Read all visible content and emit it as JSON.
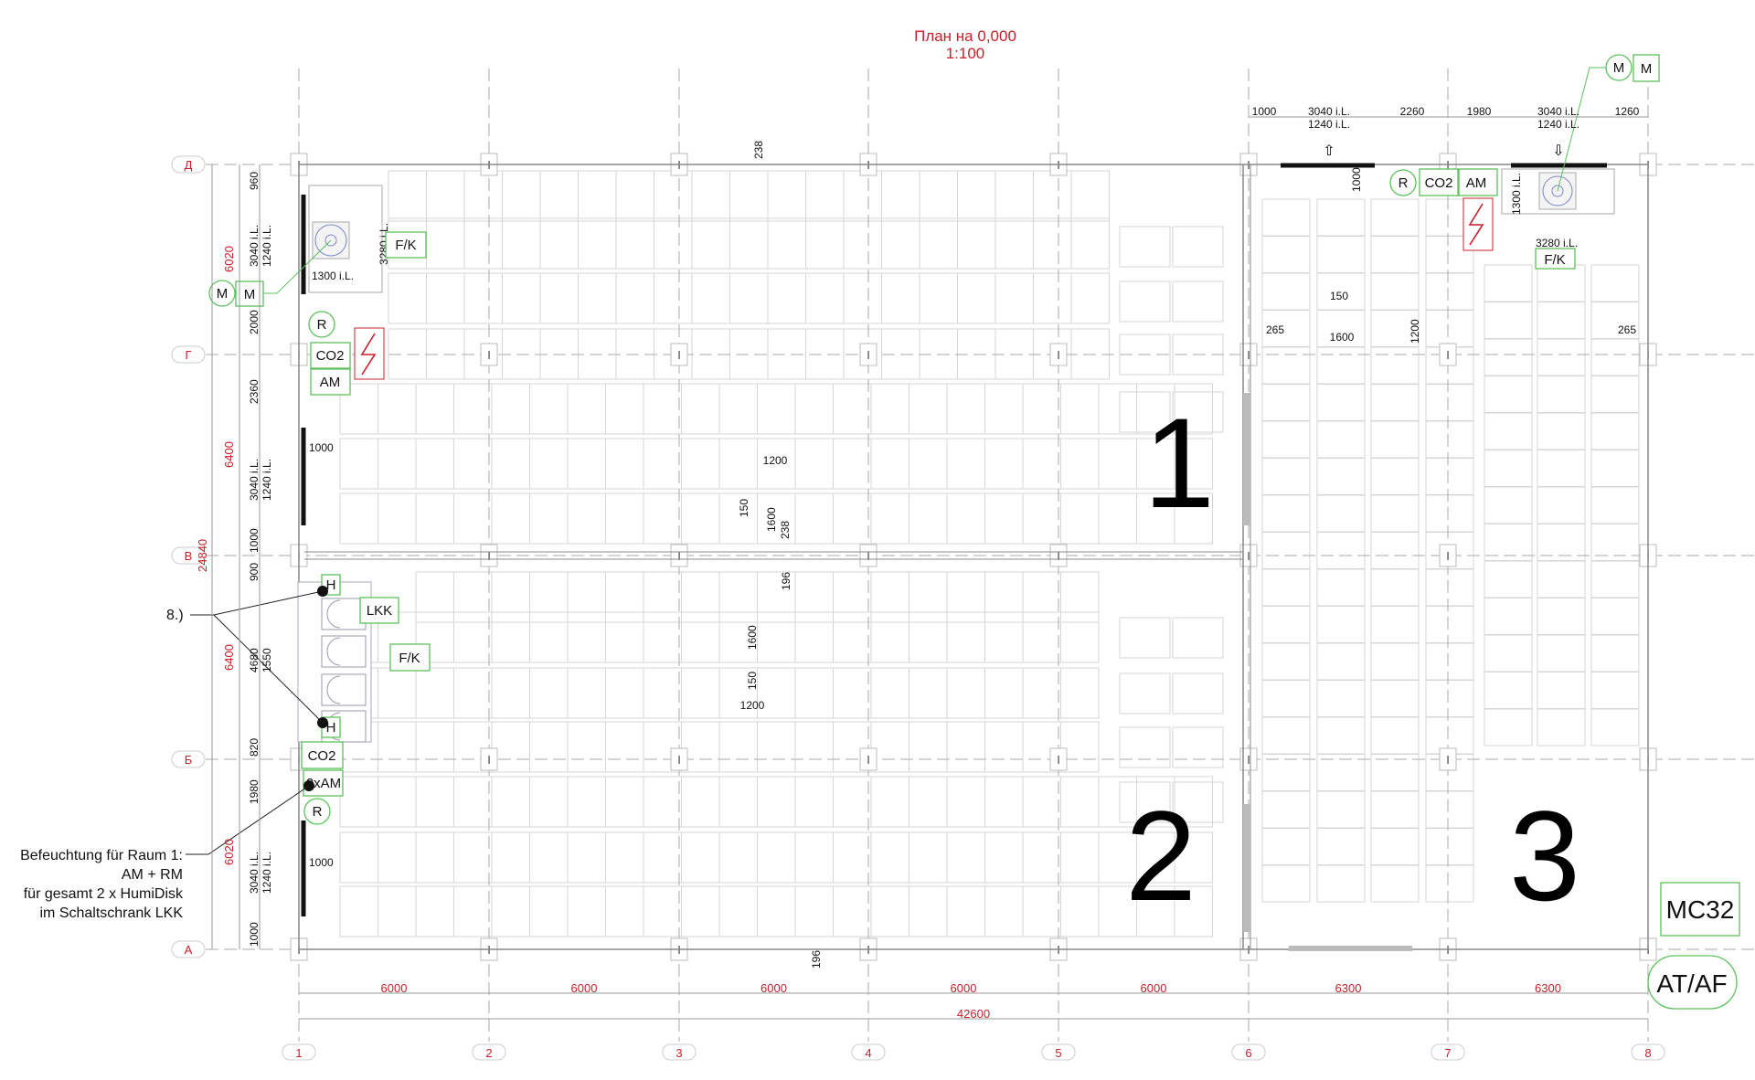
{
  "title": {
    "line1": "План на 0,000",
    "line2": "1:100"
  },
  "axes": {
    "columns": [
      "1",
      "2",
      "3",
      "4",
      "5",
      "6",
      "7",
      "8"
    ],
    "rows": [
      "Д",
      "Г",
      "В",
      "Б",
      "А"
    ]
  },
  "bottom_dims": {
    "spans": [
      "6000",
      "6000",
      "6000",
      "6000",
      "6000",
      "6300",
      "6300"
    ],
    "total": "42600"
  },
  "left_dims": {
    "red": [
      "6020",
      "6400",
      "24840",
      "6400",
      "6020"
    ],
    "black": [
      "960",
      "2000",
      "2360",
      "1000",
      "900",
      "820",
      "1980",
      "1000"
    ],
    "opening_a": "3040 i.L.",
    "opening_b": "1240 i.L.",
    "lkk_a": "4680",
    "lkk_b": "1550"
  },
  "top_right_dims": {
    "d1": "1000",
    "d2a": "3040 i.L.",
    "d2b": "1240 i.L.",
    "d3": "2260",
    "d4": "1980",
    "d5a": "3040 i.L.",
    "d5b": "1240 i.L.",
    "d6": "1260"
  },
  "inner_dims": {
    "r1_238a": "238",
    "r1_1200a": "1200",
    "r1_150a": "150",
    "r1_1600a": "1600",
    "r1_238b": "238",
    "r2_196a": "196",
    "r2_1600": "1600",
    "r2_150": "150",
    "r2_1200": "1200",
    "r2_196b": "196",
    "wall_1000a": "1000",
    "wall_1000b": "1000",
    "fan_3280": "3280 i.L.",
    "fan_1300": "1300 i.L.",
    "r3_1000": "1000",
    "r3_150": "150",
    "r3_265a": "265",
    "r3_1600": "1600",
    "r3_1200": "1200",
    "r3_265b": "265",
    "r3_fan_1300": "1300 i.L.",
    "r3_fan_3280": "3280 i.L."
  },
  "tags": {
    "fk1": "F/K",
    "m_circle1": "M",
    "m_box1": "M",
    "r1": "R",
    "co2_1": "CO2",
    "am1": "AM",
    "h_top": "H",
    "lkk": "LKK",
    "fk2": "F/K",
    "h_bottom": "H",
    "co2_2": "CO2",
    "am2": "2xAM",
    "r2": "R",
    "r3": "R",
    "co2_3": "CO2",
    "am3": "AM",
    "fk3": "F/K",
    "m_circle2": "M",
    "m_box2": "M",
    "mc32": "MC32",
    "ataf": "AT/AF"
  },
  "rooms": [
    "1",
    "2",
    "3"
  ],
  "annotations": {
    "note8": "8.)",
    "humid": [
      "Befeuchtung für Raum 1:",
      "AM + RM",
      "für gesamt 2 x HumiDisk",
      "im Schaltschrank LKK"
    ]
  },
  "colors": {
    "axis_red": "#c8202a",
    "tag_green": "#5cc05c",
    "wall": "#111111"
  }
}
